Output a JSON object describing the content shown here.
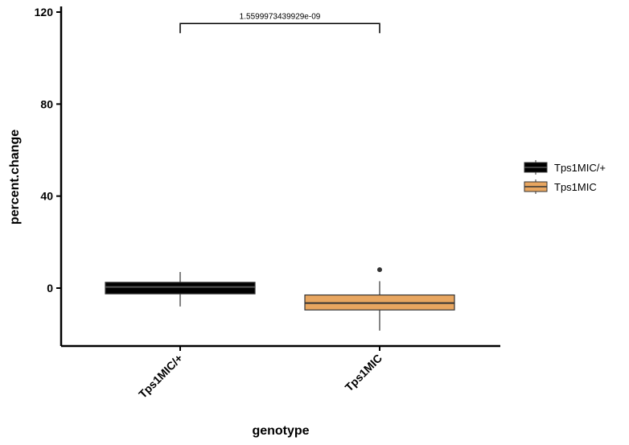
{
  "chart_data": {
    "type": "boxplot",
    "xlabel": "genotype",
    "ylabel": "percent.change",
    "ylim": [
      -25,
      122
    ],
    "yticks": [
      0,
      40,
      80,
      120
    ],
    "categories": [
      "Tps1MIC/+",
      "Tps1MIC"
    ],
    "series": [
      {
        "name": "Tps1MIC/+",
        "color": "#000000",
        "whisker_low": -8,
        "q1": -2.5,
        "median": 0.5,
        "q3": 2.5,
        "whisker_high": 7,
        "outliers": []
      },
      {
        "name": "Tps1MIC",
        "color": "#E8A660",
        "whisker_low": -18.5,
        "q1": -9.5,
        "median": -6.5,
        "q3": -3,
        "whisker_high": 3,
        "outliers": [
          8
        ]
      }
    ],
    "annotations": [
      {
        "text": "1.5599973439929e-09",
        "from": "Tps1MIC/+",
        "to": "Tps1MIC",
        "y": 115
      }
    ],
    "legend": {
      "position": "right"
    },
    "grid": false
  }
}
